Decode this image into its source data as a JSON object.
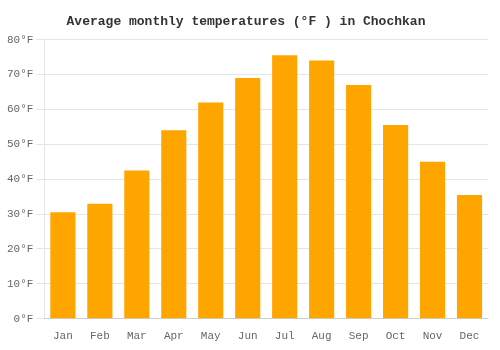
{
  "chart_data": {
    "type": "bar",
    "title": "Average monthly temperatures (°F ) in Chochkan",
    "categories": [
      "Jan",
      "Feb",
      "Mar",
      "Apr",
      "May",
      "Jun",
      "Jul",
      "Aug",
      "Sep",
      "Oct",
      "Nov",
      "Dec"
    ],
    "values": [
      30.5,
      33.0,
      42.5,
      54.0,
      62.0,
      69.0,
      75.5,
      74.0,
      67.0,
      55.5,
      45.0,
      35.5
    ],
    "color": "#FFA500",
    "ylim": [
      0,
      80
    ],
    "yticks": [
      {
        "value": 0,
        "label": "0°F"
      },
      {
        "value": 10,
        "label": "10°F"
      },
      {
        "value": 20,
        "label": "20°F"
      },
      {
        "value": 30,
        "label": "30°F"
      },
      {
        "value": 40,
        "label": "40°F"
      },
      {
        "value": 50,
        "label": "50°F"
      },
      {
        "value": 60,
        "label": "60°F"
      },
      {
        "value": 70,
        "label": "70°F"
      },
      {
        "value": 80,
        "label": "80°F"
      }
    ],
    "grid": true
  }
}
